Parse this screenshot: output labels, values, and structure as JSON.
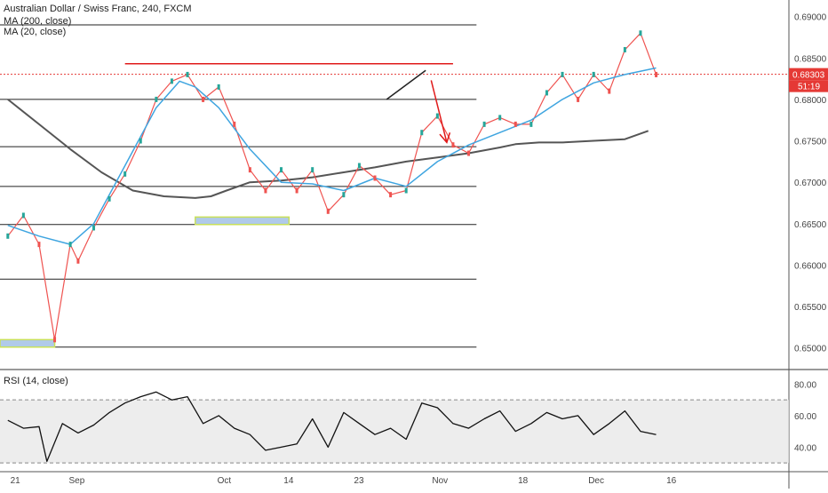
{
  "header": {
    "title": "Australian Dollar / Swiss Franc, 240, FXCM",
    "ma200_label": "MA (200, close)",
    "ma20_label": "MA (20, close)"
  },
  "rsi": {
    "label": "RSI (14, close)",
    "ticks": [
      "80.00",
      "60.00",
      "40.00"
    ]
  },
  "price_badge": {
    "price": "0.68303",
    "countdown": "51:19"
  },
  "colors": {
    "candle_up": "#26a69a",
    "candle_down": "#ef5350",
    "ma20": "#3fa5e0",
    "ma200": "#555555",
    "resistance": "#e01b1b",
    "price_line": "#e53935",
    "support_zone": "#8fb3e0",
    "zone_border": "#c8e05a",
    "rsi_line": "#111111"
  },
  "chart_data": [
    {
      "type": "line",
      "title": "Australian Dollar / Swiss Franc, 240, FXCM",
      "x_tick_labels": [
        "21",
        "Sep",
        "Oct",
        "14",
        "23",
        "Nov",
        "18",
        "Dec",
        "16"
      ],
      "y_tick_labels": [
        "0.69000",
        "0.68500",
        "0.68000",
        "0.67500",
        "0.67000",
        "0.66500",
        "0.66000",
        "0.65500",
        "0.65000"
      ],
      "ylim": [
        0.6475,
        0.692
      ],
      "grid": false,
      "horizontal_levels": [
        0.689,
        0.68,
        0.6743,
        0.6695,
        0.6649,
        0.6583,
        0.6501
      ],
      "resistance_level": 0.6843,
      "last_price": 0.68303,
      "support_zones": [
        {
          "from": 0.6649,
          "to": 0.6658
        },
        {
          "from": 0.6501,
          "to": 0.651
        }
      ],
      "series": [
        {
          "name": "Price",
          "x": [
            0,
            2,
            4,
            6,
            8,
            9,
            11,
            13,
            15,
            17,
            19,
            21,
            23,
            25,
            27,
            29,
            31,
            33,
            35,
            37,
            39,
            41,
            43,
            45,
            47,
            49,
            51,
            53,
            55,
            57,
            59,
            61,
            63,
            65,
            67,
            69,
            71,
            73,
            75,
            77,
            79,
            81,
            83
          ],
          "y": [
            0.6635,
            0.666,
            0.6625,
            0.651,
            0.6625,
            0.6605,
            0.6645,
            0.668,
            0.671,
            0.675,
            0.68,
            0.6822,
            0.683,
            0.68,
            0.6815,
            0.677,
            0.6715,
            0.669,
            0.6715,
            0.669,
            0.6715,
            0.6665,
            0.6685,
            0.672,
            0.6705,
            0.6685,
            0.669,
            0.676,
            0.678,
            0.6745,
            0.6735,
            0.677,
            0.6778,
            0.677,
            0.677,
            0.6808,
            0.683,
            0.68,
            0.683,
            0.681,
            0.686,
            0.688,
            0.683
          ]
        },
        {
          "name": "MA (20, close)",
          "x": [
            0,
            4,
            8,
            11,
            15,
            19,
            22,
            24,
            27,
            31,
            35,
            39,
            43,
            47,
            51,
            55,
            59,
            63,
            67,
            71,
            75,
            79,
            83
          ],
          "y": [
            0.6648,
            0.6635,
            0.6625,
            0.665,
            0.672,
            0.679,
            0.6822,
            0.6815,
            0.679,
            0.674,
            0.67,
            0.6698,
            0.669,
            0.6705,
            0.6695,
            0.6725,
            0.6745,
            0.676,
            0.6775,
            0.68,
            0.682,
            0.683,
            0.6838
          ]
        },
        {
          "name": "MA (200, close)",
          "x": [
            0,
            4,
            8,
            12,
            16,
            20,
            24,
            26,
            28,
            31,
            35,
            39,
            43,
            47,
            51,
            55,
            59,
            63,
            65,
            68,
            71,
            75,
            79,
            82
          ],
          "y": [
            0.68,
            0.677,
            0.674,
            0.6712,
            0.669,
            0.6683,
            0.6681,
            0.6683,
            0.669,
            0.67,
            0.6702,
            0.6706,
            0.6712,
            0.6718,
            0.6725,
            0.673,
            0.6735,
            0.6742,
            0.6746,
            0.6748,
            0.6748,
            0.675,
            0.6752,
            0.6762
          ]
        }
      ]
    },
    {
      "type": "line",
      "title": "RSI (14, close)",
      "y_tick_labels": [
        "80.00",
        "60.00",
        "40.00"
      ],
      "ylim": [
        25,
        87
      ],
      "band": [
        30,
        70
      ],
      "series": [
        {
          "name": "RSI (14, close)",
          "x": [
            0,
            2,
            4,
            5,
            7,
            9,
            11,
            13,
            15,
            17,
            19,
            21,
            23,
            25,
            27,
            29,
            31,
            33,
            35,
            37,
            39,
            41,
            43,
            45,
            47,
            49,
            51,
            53,
            55,
            57,
            59,
            61,
            63,
            65,
            67,
            69,
            71,
            73,
            75,
            77,
            79,
            81,
            83
          ],
          "y": [
            57,
            52,
            53,
            31,
            55,
            49,
            54,
            62,
            68,
            72,
            75,
            70,
            72,
            55,
            60,
            52,
            48,
            38,
            40,
            42,
            58,
            40,
            62,
            55,
            48,
            52,
            45,
            68,
            65,
            55,
            52,
            58,
            63,
            50,
            55,
            62,
            58,
            60,
            48,
            55,
            63,
            50,
            48
          ]
        }
      ]
    }
  ]
}
